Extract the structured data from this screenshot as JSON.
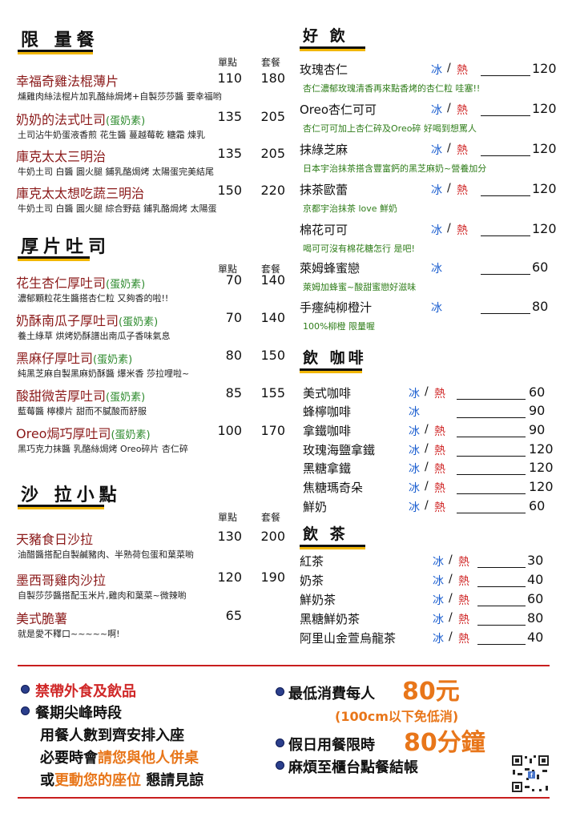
{
  "limited": {
    "title": "限 量餐",
    "h1": "單點",
    "h2": "套餐",
    "items": [
      {
        "name": "幸福奇雞法棍薄片",
        "tag": "",
        "p1": "110",
        "p2": "180",
        "desc": "燻雞肉絲法棍片加乳酪絲焗烤+自製莎莎醬 要幸福哟"
      },
      {
        "name": "奶奶的法式吐司",
        "tag": "(蛋奶素)",
        "p1": "135",
        "p2": "205",
        "desc": "土司沾牛奶蛋液香煎 花生醬 蔓越莓乾 糖霜 煉乳"
      },
      {
        "name": "庫克太太三明治",
        "tag": "",
        "p1": "135",
        "p2": "205",
        "desc": "牛奶土司 白醬 圓火腿 鋪乳酪焗烤 太陽蛋完美結尾"
      },
      {
        "name": "庫克太太想吃蔬三明治",
        "tag": "",
        "p1": "150",
        "p2": "220",
        "desc": "牛奶土司 白醬 圓火腿 綜合野菇 鋪乳酪焗烤 太陽蛋"
      }
    ]
  },
  "toast": {
    "title": "厚片吐司",
    "h1": "單點",
    "h2": "套餐",
    "items": [
      {
        "name": "花生杏仁厚吐司",
        "tag": "(蛋奶素)",
        "p1": "70",
        "p2": "140",
        "desc": "濃郁顆粒花生醬搭杏仁粒 又夠香的啦!!"
      },
      {
        "name": "奶酥南瓜子厚吐司",
        "tag": "(蛋奶素)",
        "p1": "70",
        "p2": "140",
        "desc": "養土綠草 烘烤奶酥譜出南瓜子香味氣息"
      },
      {
        "name": "黑麻仔厚吐司",
        "tag": "(蛋奶素)",
        "p1": "80",
        "p2": "150",
        "desc": "純黑芝麻自製黑麻奶酥醬 爆米香 莎拉哩啦~"
      },
      {
        "name": "酸甜微苦厚吐司",
        "tag": "(蛋奶素)",
        "p1": "85",
        "p2": "155",
        "desc": "藍莓醬 檸檬片 甜而不膩酸而舒服"
      },
      {
        "name": "Oreo焗巧厚吐司",
        "tag": "(蛋奶素)",
        "p1": "100",
        "p2": "170",
        "desc": "黑巧克力抹醬 乳酪絲焗烤 Oreo碎片 杏仁碎"
      }
    ]
  },
  "salad": {
    "title": "沙 拉小點",
    "h1": "單點",
    "h2": "套餐",
    "items": [
      {
        "name": "天豬食日沙拉",
        "tag": "",
        "p1": "130",
        "p2": "200",
        "desc": "油醋醬搭配自製鹹豬肉、半熟荷包蛋和葉菜喲"
      },
      {
        "name": "墨西哥雞肉沙拉",
        "tag": "",
        "p1": "120",
        "p2": "190",
        "desc": "自製莎莎醬搭配玉米片,雞肉和葉菜~微辣喲"
      },
      {
        "name": "美式脆薯",
        "tag": "",
        "p1": "65",
        "p2": "",
        "desc": "就是愛不釋口~~~~~啊!"
      }
    ]
  },
  "drinks": {
    "title": "好 飲",
    "ice": "冰",
    "slash": "/",
    "hot": "熱",
    "items": [
      {
        "name": "玫瑰杏仁",
        "ice": true,
        "hot": true,
        "price": "120",
        "desc": "杏仁濃郁玫瑰清香再來點香烤的杏仁粒 哇塞!!"
      },
      {
        "name": "Oreo杏仁可可",
        "ice": true,
        "hot": true,
        "price": "120",
        "desc": "杏仁可可加上杏仁碎及Oreo碎 好喝到想罵人"
      },
      {
        "name": "抹綠芝麻",
        "ice": true,
        "hot": true,
        "price": "120",
        "desc": "日本宇治抹茶搭含豐富鈣的黑芝麻奶~營養加分"
      },
      {
        "name": "抹茶歐蕾",
        "ice": true,
        "hot": true,
        "price": "120",
        "desc": "京都宇治抹茶 love 鮮奶"
      },
      {
        "name": "棉花可可",
        "ice": true,
        "hot": true,
        "price": "120",
        "desc": "喝可可沒有棉花糖怎行 是吧!"
      },
      {
        "name": "萊姆蜂蜜戀",
        "ice": true,
        "hot": false,
        "price": "60",
        "desc": "萊姆加蜂蜜~酸甜蜜戀好滋味"
      },
      {
        "name": "手瘞純柳橙汁",
        "ice": true,
        "hot": false,
        "price": "80",
        "desc": "100%柳橙 限量喔"
      }
    ]
  },
  "coffee": {
    "title": "飲 咖啡",
    "items": [
      {
        "name": "美式咖啡",
        "ice": true,
        "hot": true,
        "price": "60"
      },
      {
        "name": "蜂檸咖啡",
        "ice": true,
        "hot": false,
        "price": "90"
      },
      {
        "name": "拿鐵咖啡",
        "ice": true,
        "hot": true,
        "price": "90"
      },
      {
        "name": "玫瑰海鹽拿鐵",
        "ice": true,
        "hot": true,
        "price": "120"
      },
      {
        "name": "黑糖拿鐵",
        "ice": true,
        "hot": true,
        "price": "120"
      },
      {
        "name": "焦糖瑪奇朵",
        "ice": true,
        "hot": true,
        "price": "120"
      },
      {
        "name": "鮮奶",
        "ice": true,
        "hot": true,
        "price": "60"
      }
    ]
  },
  "tea": {
    "title": "飲 茶",
    "items": [
      {
        "name": "紅茶",
        "ice": true,
        "hot": true,
        "price": "30"
      },
      {
        "name": "奶茶",
        "ice": true,
        "hot": true,
        "price": "40"
      },
      {
        "name": "鮮奶茶",
        "ice": true,
        "hot": true,
        "price": "60"
      },
      {
        "name": "黑糖鮮奶茶",
        "ice": true,
        "hot": true,
        "price": "80"
      },
      {
        "name": "阿里山金萱烏龍茶",
        "ice": true,
        "hot": true,
        "price": "40"
      }
    ]
  },
  "footer": {
    "no_outside": "禁帶外食及飲品",
    "peak": "餐期尖峰時段",
    "peak2": "用餐人數到齊安排入座",
    "peak3a": "必要時會",
    "peak3b": "請您與他人併桌",
    "peak4a": "或",
    "peak4b": "更動您的座位",
    "peak4c": " 懇請見諒",
    "min_label": "最低消費每人",
    "min_value": "80元",
    "min_note": "(100cm以下免低消)",
    "holiday_label": "假日用餐限時",
    "holiday_value": "80分鐘",
    "checkout": "麻煩至櫃台點餐結帳"
  },
  "colors": {
    "name": "#8b1a1a",
    "tag": "#2e8b2e",
    "ice": "#1c5fd0",
    "hot": "#d02828",
    "accent": "#e8761a",
    "underline": "#f2b705"
  }
}
